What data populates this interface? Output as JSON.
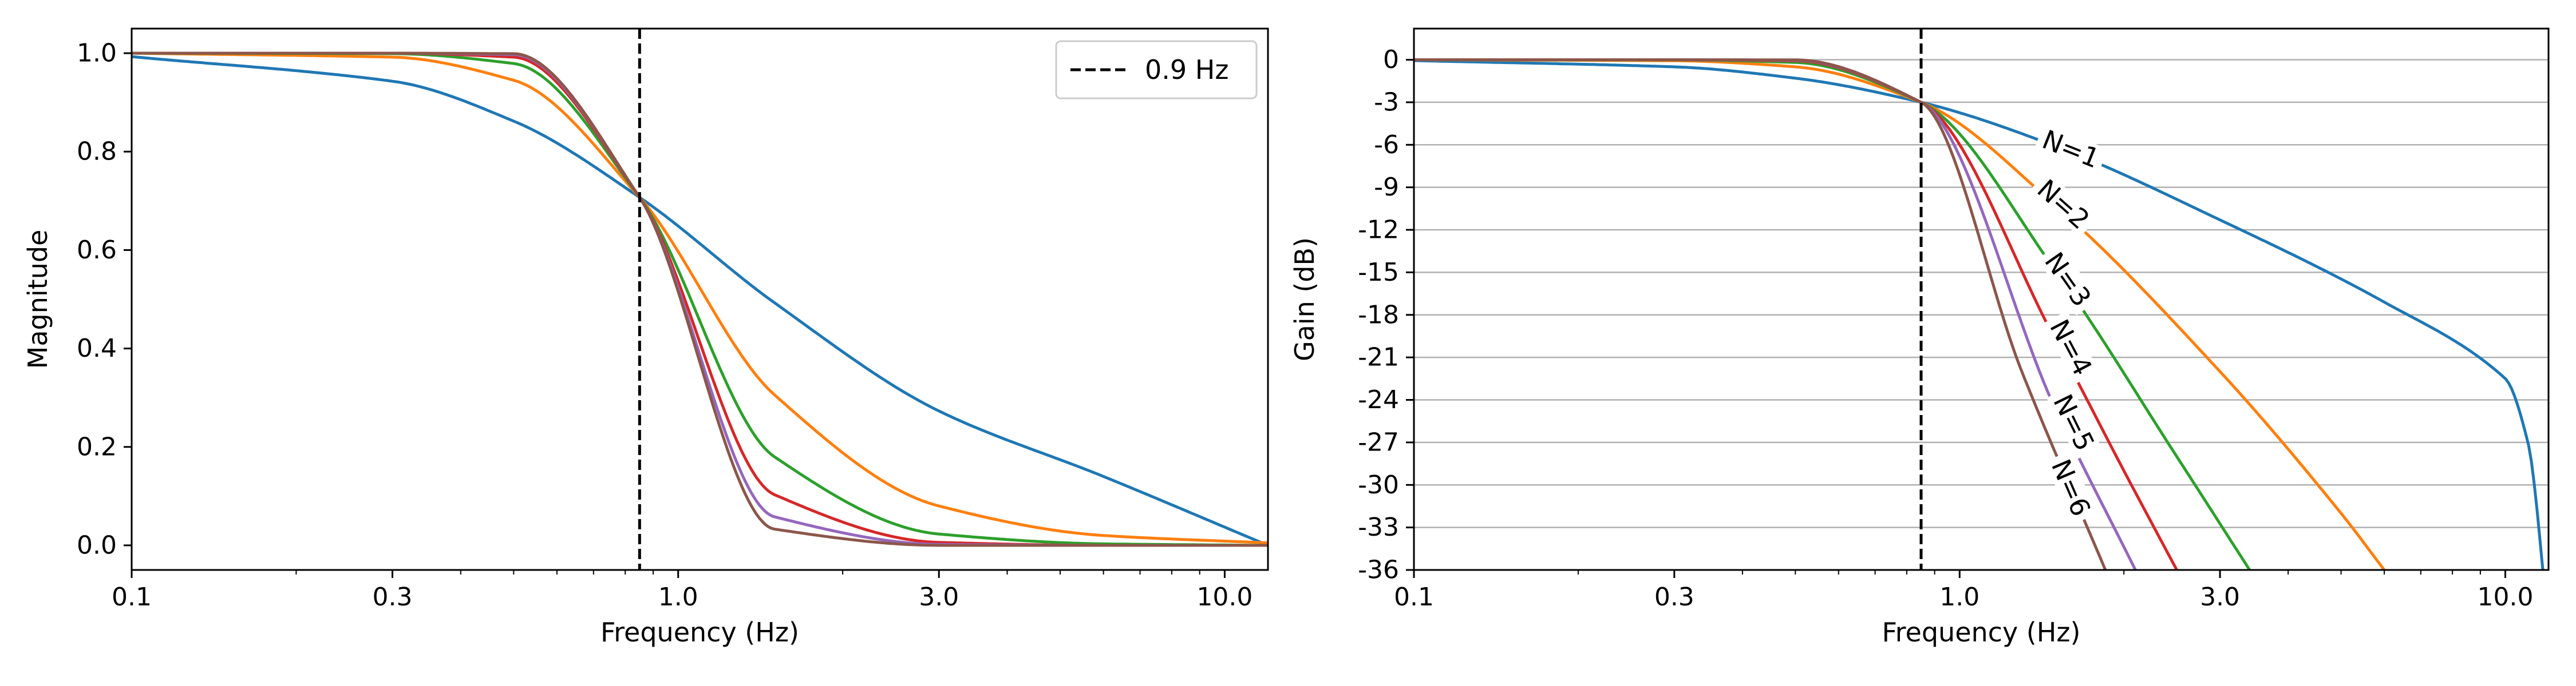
{
  "chart_data": [
    {
      "type": "line",
      "xlabel": "Frequency (Hz)",
      "ylabel": "Magnitude",
      "xscale": "log",
      "xlim": [
        0.1,
        12
      ],
      "ylim": [
        -0.05,
        1.05
      ],
      "xticks": [
        0.1,
        0.3,
        1.0,
        3.0,
        10.0
      ],
      "xtick_labels": [
        "0.1",
        "0.3",
        "1.0",
        "3.0",
        "10.0"
      ],
      "yticks": [
        0.0,
        0.2,
        0.4,
        0.6,
        0.8,
        1.0
      ],
      "ytick_labels": [
        "0.0",
        "0.2",
        "0.4",
        "0.6",
        "0.8",
        "1.0"
      ],
      "grid": false,
      "cutoff": {
        "value": 0.85,
        "label": "0.9 Hz"
      },
      "legend": {
        "placement": "top-right",
        "entries": [
          "0.9 Hz"
        ]
      },
      "series": [
        {
          "order": 1,
          "color": "#1f77b4",
          "x": [
            0.1,
            0.3,
            0.5,
            0.85,
            1.5,
            3.0,
            6.0,
            12.0
          ],
          "y": [
            0.993,
            0.943,
            0.862,
            0.707,
            0.493,
            0.273,
            0.14,
            0.0
          ]
        },
        {
          "order": 2,
          "color": "#ff7f0e",
          "x": [
            0.1,
            0.3,
            0.5,
            0.85,
            1.5,
            3.0,
            6.0,
            12.0
          ],
          "y": [
            1.0,
            0.992,
            0.945,
            0.707,
            0.306,
            0.08,
            0.02,
            0.005
          ]
        },
        {
          "order": 3,
          "color": "#2ca02c",
          "x": [
            0.1,
            0.3,
            0.5,
            0.85,
            1.5,
            3.0,
            6.0,
            12.0
          ],
          "y": [
            1.0,
            0.999,
            0.979,
            0.707,
            0.18,
            0.023,
            0.003,
            0.0
          ]
        },
        {
          "order": 4,
          "color": "#d62728",
          "x": [
            0.1,
            0.3,
            0.5,
            0.85,
            1.5,
            3.0,
            6.0,
            12.0
          ],
          "y": [
            1.0,
            1.0,
            0.992,
            0.707,
            0.103,
            0.006,
            0.0,
            0.0
          ]
        },
        {
          "order": 5,
          "color": "#9467bd",
          "x": [
            0.1,
            0.3,
            0.5,
            0.85,
            1.5,
            3.0,
            6.0,
            12.0
          ],
          "y": [
            1.0,
            1.0,
            0.997,
            0.707,
            0.058,
            0.002,
            0.0,
            0.0
          ]
        },
        {
          "order": 6,
          "color": "#8c564b",
          "x": [
            0.1,
            0.3,
            0.5,
            0.85,
            1.5,
            3.0,
            6.0,
            12.0
          ],
          "y": [
            1.0,
            1.0,
            0.999,
            0.707,
            0.033,
            0.0,
            0.0,
            0.0
          ]
        }
      ]
    },
    {
      "type": "line",
      "xlabel": "Frequency (Hz)",
      "ylabel": "Gain (dB)",
      "xscale": "log",
      "xlim": [
        0.1,
        12
      ],
      "ylim": [
        -36,
        2.2
      ],
      "xticks": [
        0.1,
        0.3,
        1.0,
        3.0,
        10.0
      ],
      "xtick_labels": [
        "0.1",
        "0.3",
        "1.0",
        "3.0",
        "10.0"
      ],
      "yticks": [
        0,
        -3,
        -6,
        -9,
        -12,
        -15,
        -18,
        -21,
        -24,
        -27,
        -30,
        -33,
        -36
      ],
      "ytick_labels": [
        "0",
        "-3",
        "-6",
        "-9",
        "-12",
        "-15",
        "-18",
        "-21",
        "-24",
        "-27",
        "-30",
        "-33",
        "-36"
      ],
      "grid": true,
      "cutoff": {
        "value": 0.85
      },
      "series": [
        {
          "name": "N=1",
          "order": 1,
          "color": "#1f77b4",
          "x": [
            0.1,
            0.3,
            0.5,
            0.85,
            1.5,
            3.0,
            6.0,
            10.0,
            11.0,
            12.0
          ],
          "y": [
            -0.06,
            -0.5,
            -1.3,
            -3.0,
            -6.1,
            -11.3,
            -17.1,
            -22.5,
            -27.0,
            -40.0
          ]
        },
        {
          "name": "N=2",
          "order": 2,
          "color": "#ff7f0e",
          "x": [
            0.1,
            0.3,
            0.5,
            0.85,
            1.5,
            3.0,
            5.0,
            6.0
          ],
          "y": [
            0.0,
            -0.07,
            -0.5,
            -3.0,
            -10.3,
            -22.0,
            -32.0,
            -36.0
          ]
        },
        {
          "name": "N=3",
          "order": 3,
          "color": "#2ca02c",
          "x": [
            0.1,
            0.3,
            0.5,
            0.85,
            1.5,
            2.5,
            3.4
          ],
          "y": [
            0.0,
            -0.01,
            -0.19,
            -3.0,
            -14.9,
            -28.0,
            -36.0
          ]
        },
        {
          "name": "N=4",
          "order": 4,
          "color": "#d62728",
          "x": [
            0.1,
            0.3,
            0.5,
            0.85,
            1.5,
            2.0,
            2.5
          ],
          "y": [
            0.0,
            0.0,
            -0.07,
            -3.0,
            -19.8,
            -29.0,
            -36.0
          ]
        },
        {
          "name": "N=5",
          "order": 5,
          "color": "#9467bd",
          "x": [
            0.1,
            0.3,
            0.5,
            0.85,
            1.5,
            2.1
          ],
          "y": [
            0.0,
            0.0,
            -0.03,
            -3.0,
            -24.7,
            -36.0
          ]
        },
        {
          "name": "N=6",
          "order": 6,
          "color": "#8c564b",
          "x": [
            0.1,
            0.3,
            0.5,
            0.85,
            1.3,
            1.85
          ],
          "y": [
            0.0,
            0.0,
            -0.01,
            -3.0,
            -22.0,
            -36.0
          ]
        }
      ],
      "labels": [
        {
          "text": "N=1",
          "x": 1.6,
          "y": -6.3
        },
        {
          "text": "N=2",
          "x": 1.55,
          "y": -10.2
        },
        {
          "text": "N=3",
          "x": 1.58,
          "y": -15.5
        },
        {
          "text": "N=4",
          "x": 1.6,
          "y": -20.3
        },
        {
          "text": "N=5",
          "x": 1.62,
          "y": -25.6
        },
        {
          "text": "N=6",
          "x": 1.6,
          "y": -30.2
        }
      ]
    }
  ]
}
